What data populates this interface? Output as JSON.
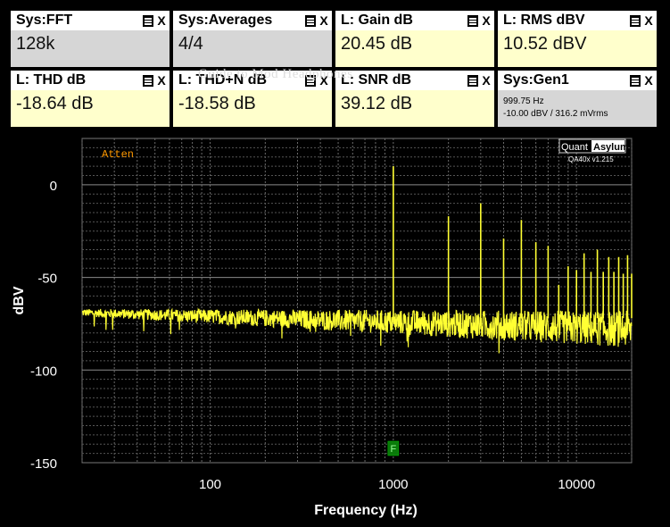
{
  "tiles": [
    {
      "title": "Sys:FFT",
      "value": "128k",
      "bg": "#d6d6d6"
    },
    {
      "title": "Sys:Averages",
      "value": "4/4",
      "bg": "#d6d6d6"
    },
    {
      "title": "L: Gain dB",
      "value": "20.45 dB",
      "bg": "#ffffcc"
    },
    {
      "title": "L: RMS dBV",
      "value": "10.52 dBV",
      "bg": "#ffffcc"
    },
    {
      "title": "L: THD dB",
      "value": "-18.64 dB",
      "bg": "#ffffcc"
    },
    {
      "title": "L: THD+N dB",
      "value": "-18.58 dB",
      "bg": "#ffffcc"
    },
    {
      "title": "L: SNR dB",
      "value": "39.12 dB",
      "bg": "#ffffcc"
    },
    {
      "title": "Sys:Gen1",
      "line1": "999.75 Hz",
      "line2": "-10.00 dBV  / 316.2 mVrms",
      "bg": "#d6d6d6"
    }
  ],
  "close_glyph": "X",
  "watermark": "Guide to Mod Headphones",
  "chart_data": {
    "type": "line",
    "xlabel": "Frequency (Hz)",
    "ylabel": "dBV",
    "x_scale": "log",
    "xlim": [
      20,
      20000
    ],
    "ylim": [
      -150,
      25
    ],
    "xticks": [
      100,
      1000,
      10000
    ],
    "xtick_labels": [
      "100",
      "1000",
      "10000"
    ],
    "yticks": [
      0,
      -50,
      -100,
      -150
    ],
    "ytick_labels": [
      "0",
      "-50",
      "-100",
      "-150"
    ],
    "grid": true,
    "annotation": "Atten",
    "logo_left": "Quant",
    "logo_right": "Asylum",
    "version": "QA40x v1.215",
    "marker_label": "F",
    "marker_freq": 1000,
    "noise_floor": {
      "start_db": -69,
      "end_db": -78
    },
    "series_color": "#ffff33",
    "harmonics": [
      {
        "freq": 1000,
        "db": 10
      },
      {
        "freq": 2000,
        "db": -17
      },
      {
        "freq": 3000,
        "db": -10
      },
      {
        "freq": 4000,
        "db": -29
      },
      {
        "freq": 5000,
        "db": -19
      },
      {
        "freq": 6000,
        "db": -31
      },
      {
        "freq": 7000,
        "db": -33
      },
      {
        "freq": 8000,
        "db": -54
      },
      {
        "freq": 9000,
        "db": -44
      },
      {
        "freq": 10000,
        "db": -46
      },
      {
        "freq": 11000,
        "db": -37
      },
      {
        "freq": 12000,
        "db": -47
      },
      {
        "freq": 13000,
        "db": -35
      },
      {
        "freq": 14000,
        "db": -47
      },
      {
        "freq": 15000,
        "db": -39
      },
      {
        "freq": 16000,
        "db": -47
      },
      {
        "freq": 17000,
        "db": -39
      },
      {
        "freq": 18000,
        "db": -48
      },
      {
        "freq": 19000,
        "db": -38
      },
      {
        "freq": 20000,
        "db": -48
      }
    ]
  }
}
